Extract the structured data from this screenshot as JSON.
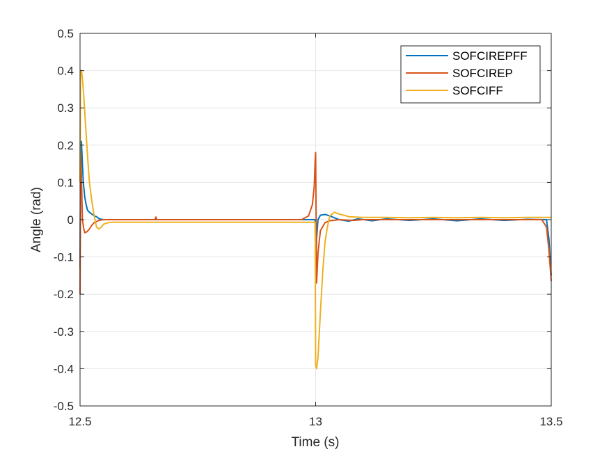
{
  "chart_data": {
    "type": "line",
    "title": "",
    "xlabel": "Time (s)",
    "ylabel": "Angle (rad)",
    "xlim": [
      12.5,
      13.5
    ],
    "ylim": [
      -0.5,
      0.5
    ],
    "xticks": [
      12.5,
      13,
      13.5
    ],
    "xtick_labels": [
      "12.5",
      "13",
      "13.5"
    ],
    "yticks": [
      -0.5,
      -0.4,
      -0.3,
      -0.2,
      -0.1,
      0,
      0.1,
      0.2,
      0.3,
      0.4,
      0.5
    ],
    "ytick_labels": [
      "-0.5",
      "-0.4",
      "-0.3",
      "-0.2",
      "-0.1",
      "0",
      "0.1",
      "0.2",
      "0.3",
      "0.4",
      "0.5"
    ],
    "grid": true,
    "legend_position": "top-right",
    "series": [
      {
        "name": "SOFCIREPFF",
        "color": "#0072BD",
        "x": [
          12.5,
          12.501,
          12.503,
          12.505,
          12.507,
          12.51,
          12.513,
          12.516,
          12.52,
          12.525,
          12.53,
          12.535,
          12.54,
          12.545,
          12.55,
          12.7,
          12.9,
          12.99,
          12.999,
          13.0,
          13.002,
          13.005,
          13.01,
          13.02,
          13.03,
          13.04,
          13.05,
          13.07,
          13.09,
          13.12,
          13.15,
          13.2,
          13.25,
          13.3,
          13.35,
          13.4,
          13.45,
          13.49,
          13.495,
          13.5
        ],
        "y": [
          -0.13,
          0.1,
          0.21,
          0.15,
          0.1,
          0.06,
          0.04,
          0.025,
          0.02,
          0.015,
          0.01,
          0.008,
          0.003,
          0.001,
          0.0,
          0.0,
          0.0,
          0.0,
          0.0,
          -0.15,
          -0.05,
          0.0,
          0.012,
          0.014,
          0.01,
          0.005,
          0.0,
          -0.004,
          0.002,
          -0.003,
          0.002,
          -0.002,
          0.002,
          -0.003,
          0.002,
          -0.002,
          0.001,
          0.0,
          -0.05,
          -0.15
        ]
      },
      {
        "name": "SOFCIREP",
        "color": "#D95319",
        "x": [
          12.5,
          12.501,
          12.503,
          12.505,
          12.508,
          12.51,
          12.515,
          12.52,
          12.525,
          12.53,
          12.54,
          12.55,
          12.6,
          12.659,
          12.661,
          12.663,
          12.7,
          12.9,
          12.97,
          12.985,
          12.993,
          12.997,
          12.999,
          13.0,
          13.002,
          13.005,
          13.01,
          13.02,
          13.03,
          13.05,
          13.08,
          13.1,
          13.15,
          13.2,
          13.25,
          13.3,
          13.35,
          13.4,
          13.45,
          13.48,
          13.49,
          13.495,
          13.5
        ],
        "y": [
          -0.2,
          0.18,
          0.12,
          0.0,
          -0.025,
          -0.035,
          -0.032,
          -0.025,
          -0.015,
          -0.008,
          -0.002,
          0.0,
          0.0,
          0.0,
          0.007,
          0.0,
          0.0,
          0.0,
          0.0,
          0.01,
          0.04,
          0.09,
          0.16,
          0.18,
          -0.17,
          -0.09,
          -0.03,
          -0.008,
          -0.003,
          0.0,
          -0.002,
          0.0,
          0.0,
          0.0,
          0.0,
          0.0,
          0.0,
          0.0,
          0.0,
          0.0,
          -0.02,
          -0.08,
          -0.165
        ]
      },
      {
        "name": "SOFCIFF",
        "color": "#EDB120",
        "x": [
          12.5,
          12.501,
          12.503,
          12.505,
          12.508,
          12.512,
          12.516,
          12.52,
          12.525,
          12.53,
          12.535,
          12.54,
          12.545,
          12.55,
          12.56,
          12.57,
          12.6,
          12.9,
          12.999,
          13.0,
          13.002,
          13.005,
          13.01,
          13.015,
          13.02,
          13.025,
          13.03,
          13.04,
          13.05,
          13.06,
          13.07,
          13.1,
          13.15,
          13.2,
          13.25,
          13.3,
          13.35,
          13.4,
          13.45,
          13.49,
          13.5
        ],
        "y": [
          0.1,
          0.4,
          0.4,
          0.38,
          0.33,
          0.25,
          0.17,
          0.1,
          0.05,
          0.01,
          -0.02,
          -0.025,
          -0.02,
          -0.012,
          -0.008,
          -0.007,
          -0.007,
          -0.007,
          -0.007,
          -0.39,
          -0.4,
          -0.37,
          -0.25,
          -0.14,
          -0.06,
          -0.02,
          0.01,
          0.02,
          0.015,
          0.012,
          0.008,
          0.006,
          0.006,
          0.005,
          0.006,
          0.005,
          0.006,
          0.005,
          0.006,
          0.006,
          0.006
        ]
      }
    ]
  }
}
